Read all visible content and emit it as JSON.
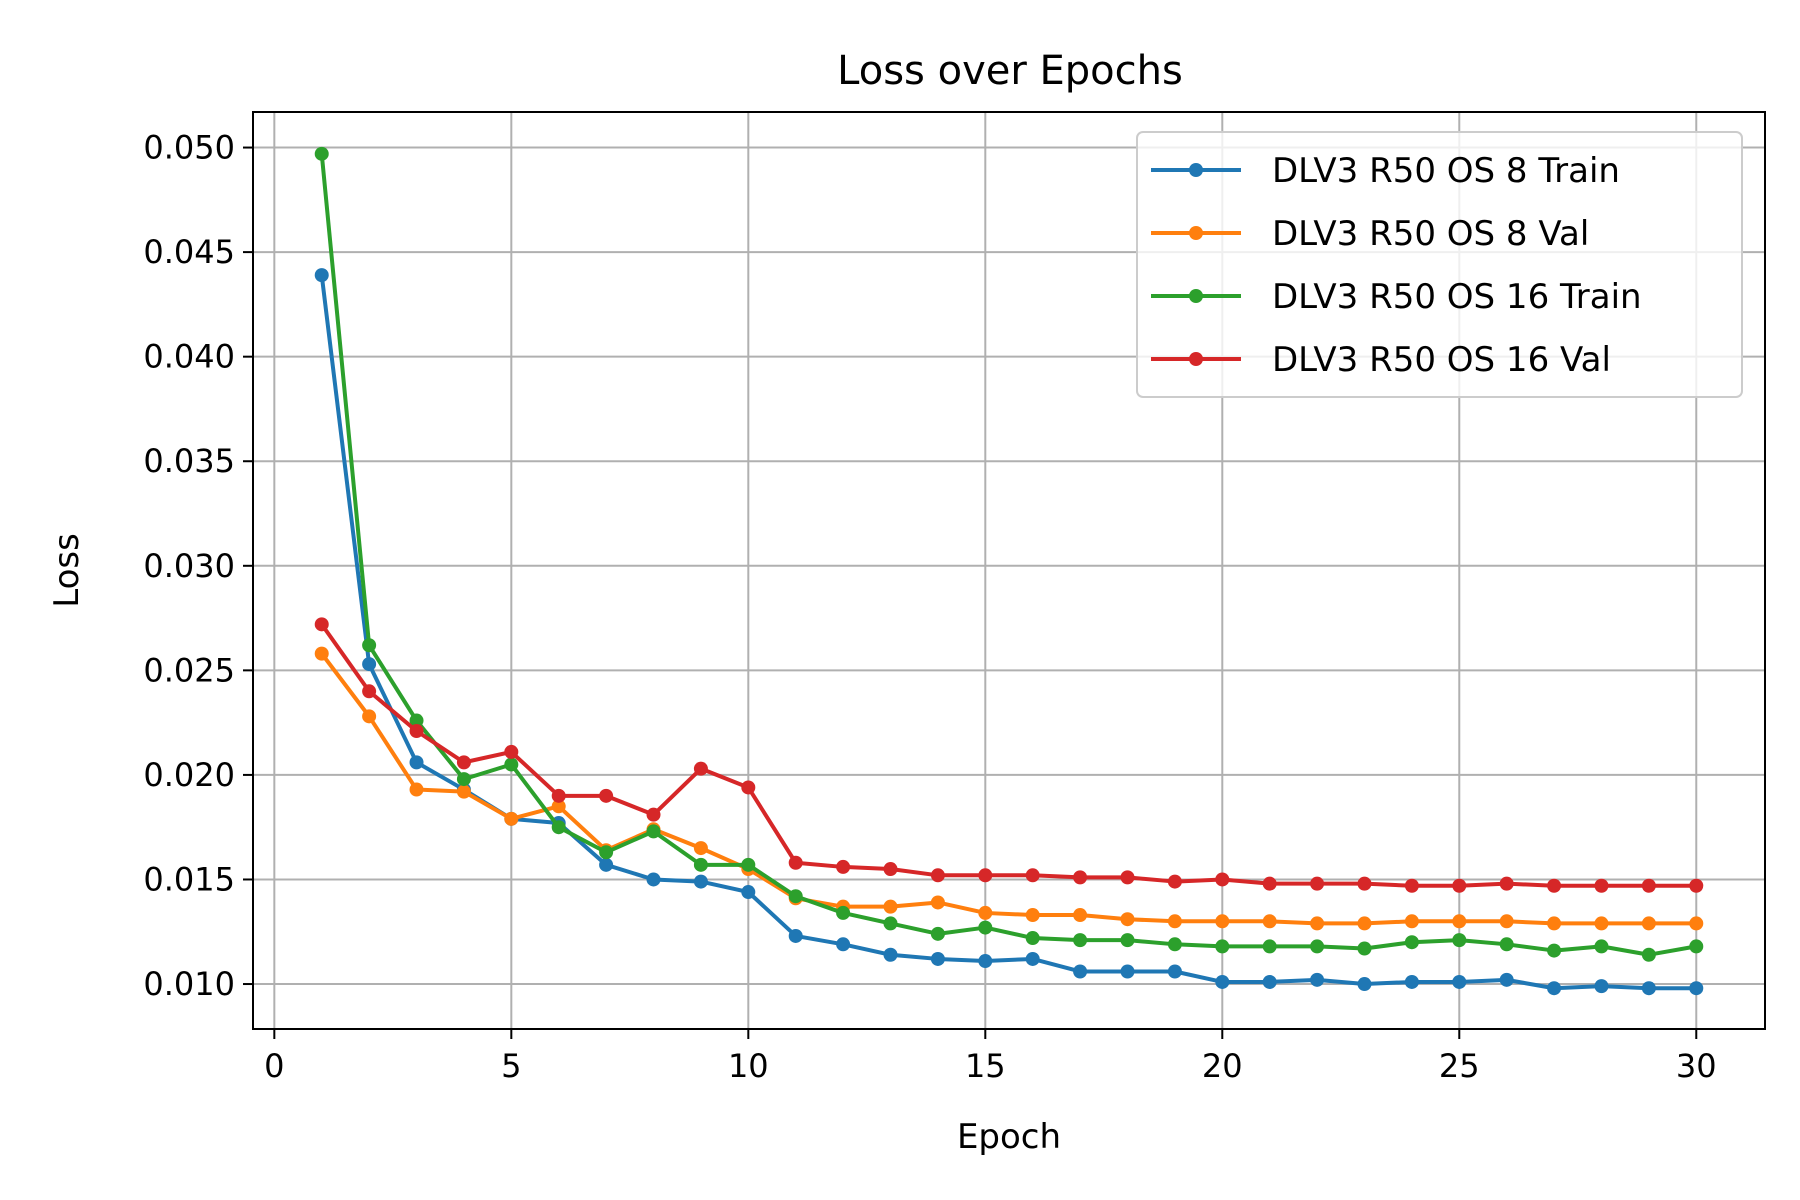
{
  "chart_data": {
    "type": "line",
    "title": "Loss over Epochs",
    "xlabel": "Epoch",
    "ylabel": "Loss",
    "xlim": [
      -0.45,
      31.45
    ],
    "ylim": [
      0.00785,
      0.0517
    ],
    "xticks": [
      0,
      5,
      10,
      15,
      20,
      25,
      30
    ],
    "xtick_labels": [
      "0",
      "5",
      "10",
      "15",
      "20",
      "25",
      "30"
    ],
    "yticks": [
      0.01,
      0.015,
      0.02,
      0.025,
      0.03,
      0.035,
      0.04,
      0.045,
      0.05
    ],
    "ytick_labels": [
      "0.010",
      "0.015",
      "0.020",
      "0.025",
      "0.030",
      "0.035",
      "0.040",
      "0.045",
      "0.050"
    ],
    "grid": true,
    "legend_position": "top-right",
    "x": [
      1,
      2,
      3,
      4,
      5,
      6,
      7,
      8,
      9,
      10,
      11,
      12,
      13,
      14,
      15,
      16,
      17,
      18,
      19,
      20,
      21,
      22,
      23,
      24,
      25,
      26,
      27,
      28,
      29,
      30
    ],
    "series": [
      {
        "name": "DLV3 R50 OS 8 Train",
        "color": "#1f77b4",
        "values": [
          0.0439,
          0.0253,
          0.0206,
          0.0193,
          0.0179,
          0.0177,
          0.0157,
          0.015,
          0.0149,
          0.0144,
          0.0123,
          0.0119,
          0.0114,
          0.0112,
          0.0111,
          0.0112,
          0.0106,
          0.0106,
          0.0106,
          0.0101,
          0.0101,
          0.0102,
          0.01,
          0.0101,
          0.0101,
          0.0102,
          0.0098,
          0.0099,
          0.0098,
          0.0098
        ]
      },
      {
        "name": "DLV3 R50 OS 8 Val",
        "color": "#ff7f0e",
        "values": [
          0.0258,
          0.0228,
          0.0193,
          0.0192,
          0.0179,
          0.0185,
          0.0164,
          0.0174,
          0.0165,
          0.0155,
          0.0141,
          0.0137,
          0.0137,
          0.0139,
          0.0134,
          0.0133,
          0.0133,
          0.0131,
          0.013,
          0.013,
          0.013,
          0.0129,
          0.0129,
          0.013,
          0.013,
          0.013,
          0.0129,
          0.0129,
          0.0129,
          0.0129
        ]
      },
      {
        "name": "DLV3 R50 OS 16 Train",
        "color": "#2ca02c",
        "values": [
          0.0497,
          0.0262,
          0.0226,
          0.0198,
          0.0205,
          0.0175,
          0.0163,
          0.0173,
          0.0157,
          0.0157,
          0.0142,
          0.0134,
          0.0129,
          0.0124,
          0.0127,
          0.0122,
          0.0121,
          0.0121,
          0.0119,
          0.0118,
          0.0118,
          0.0118,
          0.0117,
          0.012,
          0.0121,
          0.0119,
          0.0116,
          0.0118,
          0.0114,
          0.0118
        ]
      },
      {
        "name": "DLV3 R50 OS 16 Val",
        "color": "#d62728",
        "values": [
          0.0272,
          0.024,
          0.0221,
          0.0206,
          0.0211,
          0.019,
          0.019,
          0.0181,
          0.0203,
          0.0194,
          0.0158,
          0.0156,
          0.0155,
          0.0152,
          0.0152,
          0.0152,
          0.0151,
          0.0151,
          0.0149,
          0.015,
          0.0148,
          0.0148,
          0.0148,
          0.0147,
          0.0147,
          0.0148,
          0.0147,
          0.0147,
          0.0147,
          0.0147
        ]
      }
    ]
  }
}
